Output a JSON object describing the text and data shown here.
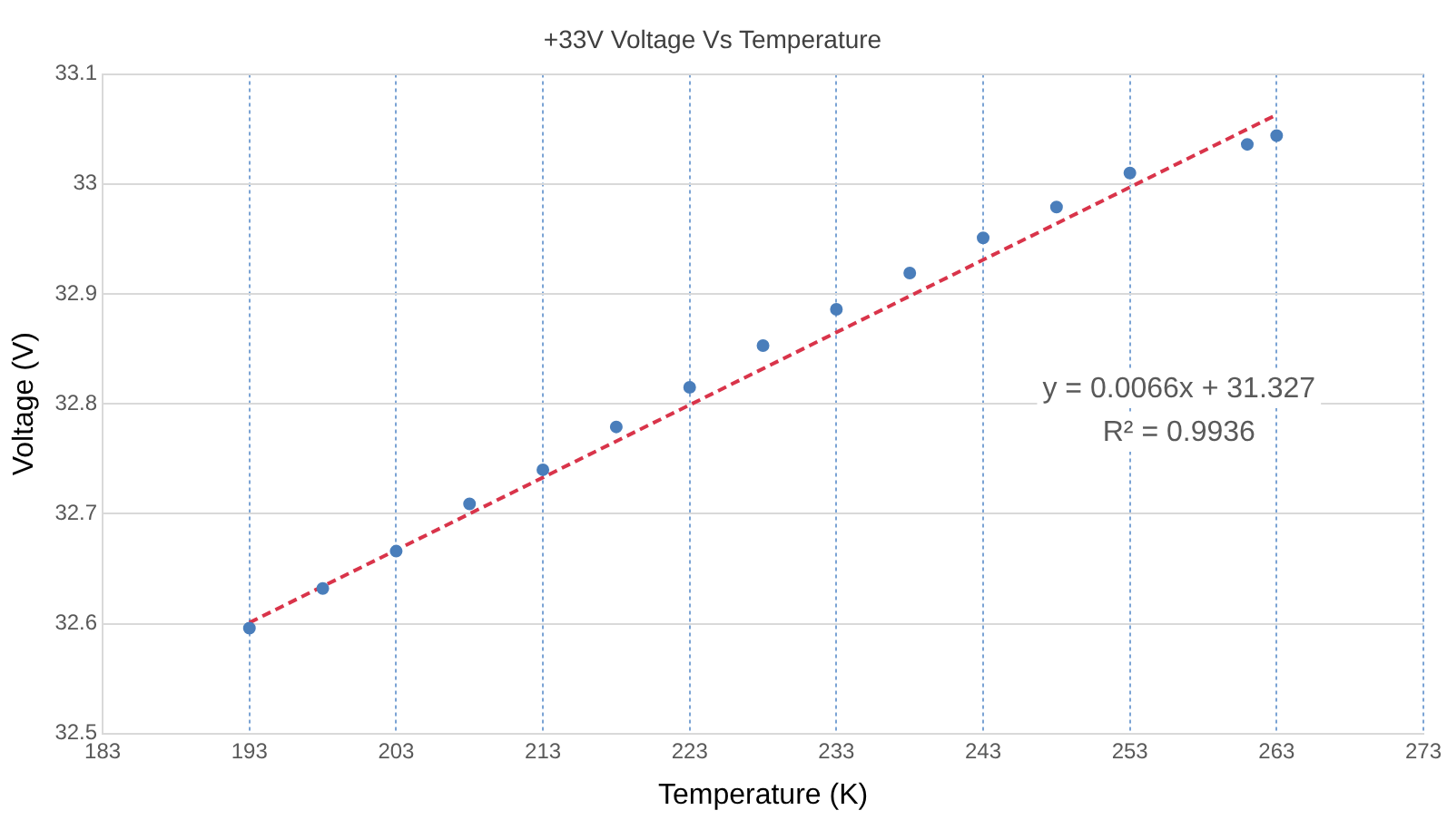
{
  "chart_data": {
    "type": "scatter",
    "title": "+33V Voltage Vs Temperature",
    "xlabel": "Temperature (K)",
    "ylabel": "Voltage (V)",
    "series": [
      {
        "color": "#4a7ebb",
        "marker": "circle",
        "x": [
          193,
          198,
          203,
          208,
          213,
          218,
          223,
          228,
          233,
          238,
          243,
          248,
          253,
          261,
          263
        ],
        "values": [
          32.596,
          32.632,
          32.666,
          32.709,
          32.74,
          32.779,
          32.815,
          32.853,
          32.886,
          32.919,
          32.951,
          32.979,
          33.01,
          33.036,
          33.044
        ]
      },
      {
        "type": "line",
        "color": "#d9344a",
        "line_style": "dashed",
        "x": [
          193,
          263
        ],
        "values": [
          32.601,
          33.063
        ]
      }
    ],
    "xlim": [
      183,
      273
    ],
    "xticks": [
      183,
      193,
      203,
      213,
      223,
      233,
      243,
      253,
      263,
      273
    ],
    "ylim": [
      32.5,
      33.1
    ],
    "yticks": [
      32.5,
      32.6,
      32.7,
      32.8,
      32.9,
      33,
      33.1
    ],
    "grid": true,
    "legend": false,
    "annotations": [
      "y = 0.0066x + 31.327",
      "R² = 0.9936"
    ]
  }
}
